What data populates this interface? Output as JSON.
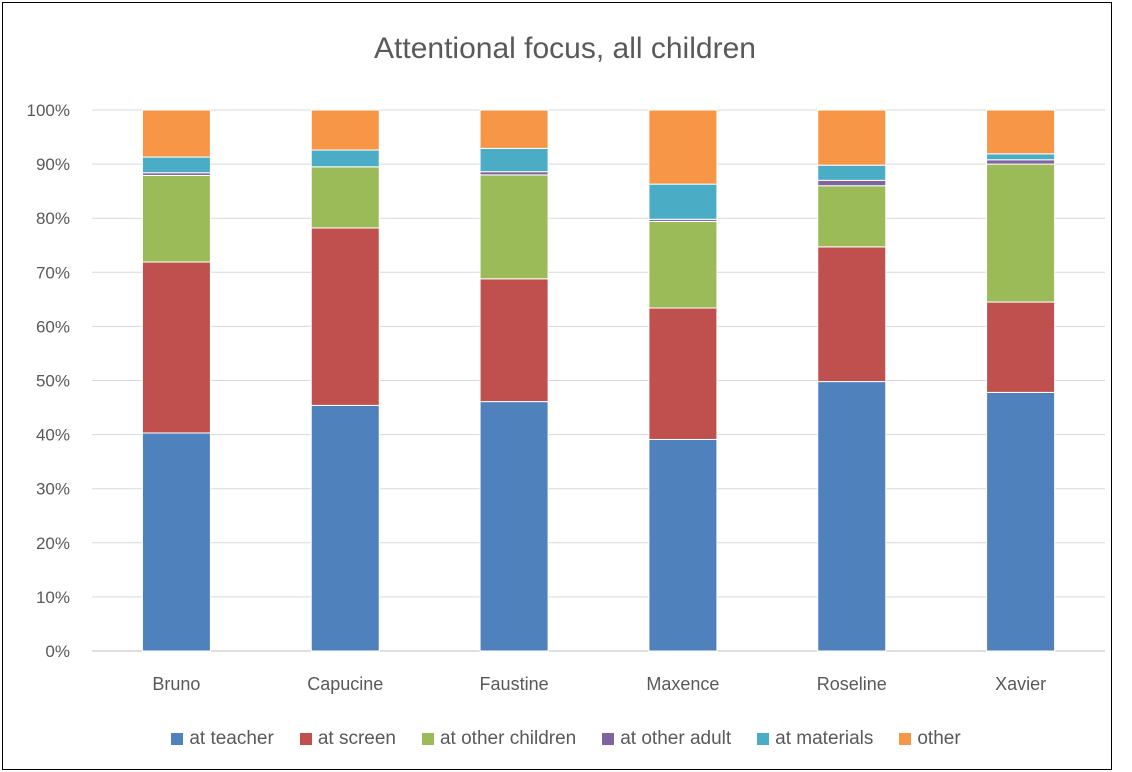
{
  "chart_data": {
    "type": "bar",
    "stacked": true,
    "percent_stacked": true,
    "title": "Attentional focus, all children",
    "categories": [
      "Bruno",
      "Capucine",
      "Faustine",
      "Maxence",
      "Roseline",
      "Xavier"
    ],
    "series": [
      {
        "name": "at teacher",
        "color": "#4F81BD",
        "values": [
          40.3,
          45.4,
          46.1,
          39.1,
          49.8,
          47.8
        ]
      },
      {
        "name": "at screen",
        "color": "#C0504D",
        "values": [
          31.6,
          32.8,
          22.7,
          24.3,
          24.9,
          16.7
        ]
      },
      {
        "name": "at other children",
        "color": "#9BBB59",
        "values": [
          16.0,
          11.3,
          19.2,
          16.0,
          11.3,
          25.5
        ]
      },
      {
        "name": "at other adult",
        "color": "#8064A2",
        "values": [
          0.5,
          0.0,
          0.6,
          0.4,
          1.0,
          0.8
        ]
      },
      {
        "name": "at materials",
        "color": "#4BACC6",
        "values": [
          2.9,
          3.1,
          4.3,
          6.5,
          2.8,
          1.1
        ]
      },
      {
        "name": "other",
        "color": "#F79646",
        "values": [
          8.7,
          7.4,
          7.1,
          13.7,
          10.2,
          8.1
        ]
      }
    ],
    "yticks": [
      "0%",
      "10%",
      "20%",
      "30%",
      "40%",
      "50%",
      "60%",
      "70%",
      "80%",
      "90%",
      "100%"
    ],
    "ylim": [
      0,
      100
    ],
    "grid": true,
    "legend_position": "bottom"
  }
}
